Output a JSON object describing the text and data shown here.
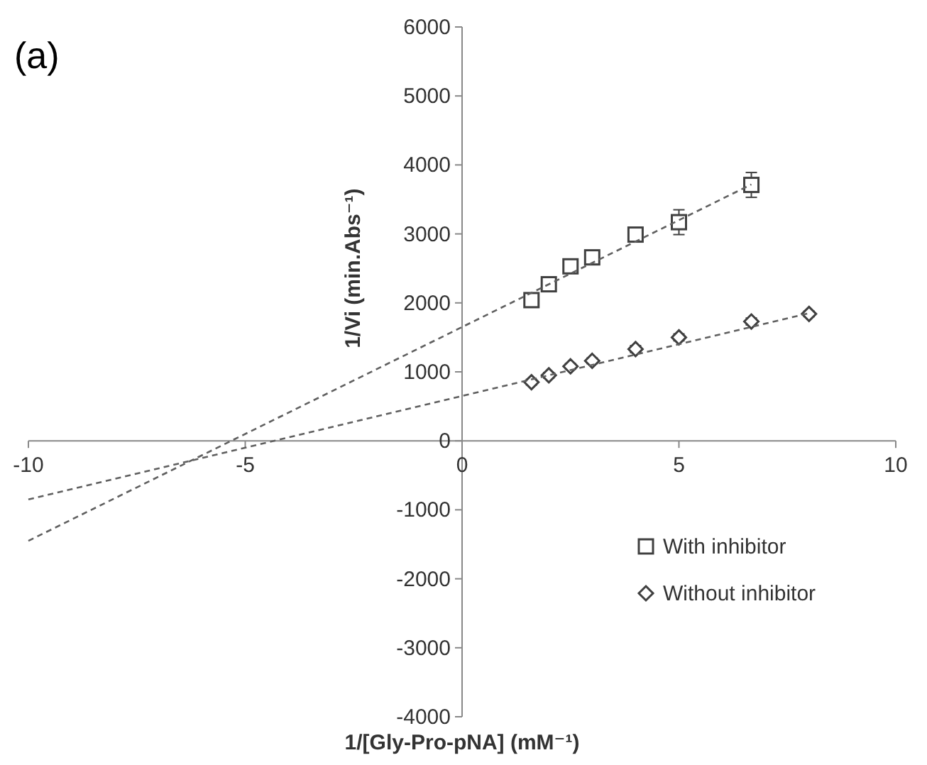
{
  "chart_data": {
    "type": "scatter",
    "title": "(a)",
    "xlabel": "1/[Gly-Pro-pNA] (mM⁻¹)",
    "ylabel": "1/Vi (min.Abs⁻¹)",
    "xlim": [
      -10,
      10
    ],
    "ylim": [
      -4000,
      6000
    ],
    "xticks": [
      -10,
      -5,
      0,
      5,
      10
    ],
    "yticks": [
      -4000,
      -3000,
      -2000,
      -1000,
      0,
      1000,
      2000,
      3000,
      4000,
      5000,
      6000
    ],
    "grid": false,
    "legend": "bottom right",
    "series": [
      {
        "name": "With inhibitor",
        "color": "#404040",
        "marker": "square",
        "x": [
          1.6,
          2,
          2.5,
          3,
          4,
          5,
          6.67
        ],
        "values": [
          2040,
          2270,
          2530,
          2660,
          2990,
          3170,
          3710
        ],
        "errors": [
          60,
          60,
          70,
          70,
          60,
          180,
          180
        ]
      },
      {
        "name": "Without inhibitor",
        "color": "#404040",
        "marker": "diamond",
        "x": [
          1.6,
          2,
          2.5,
          3,
          4,
          5,
          6.67,
          8
        ],
        "values": [
          850,
          950,
          1080,
          1160,
          1330,
          1500,
          1730,
          1840
        ],
        "errors": [
          40,
          40,
          40,
          40,
          50,
          50,
          50,
          40
        ]
      },
      {
        "type": "line",
        "color": "#606060",
        "line_style": "dashed",
        "marker": "none",
        "x": [
          -10,
          6.67
        ],
        "values": [
          -1450,
          3717
        ]
      },
      {
        "type": "line",
        "color": "#606060",
        "line_style": "dashed",
        "marker": "none",
        "x": [
          -10,
          8
        ],
        "values": [
          -850,
          1850
        ]
      }
    ]
  }
}
